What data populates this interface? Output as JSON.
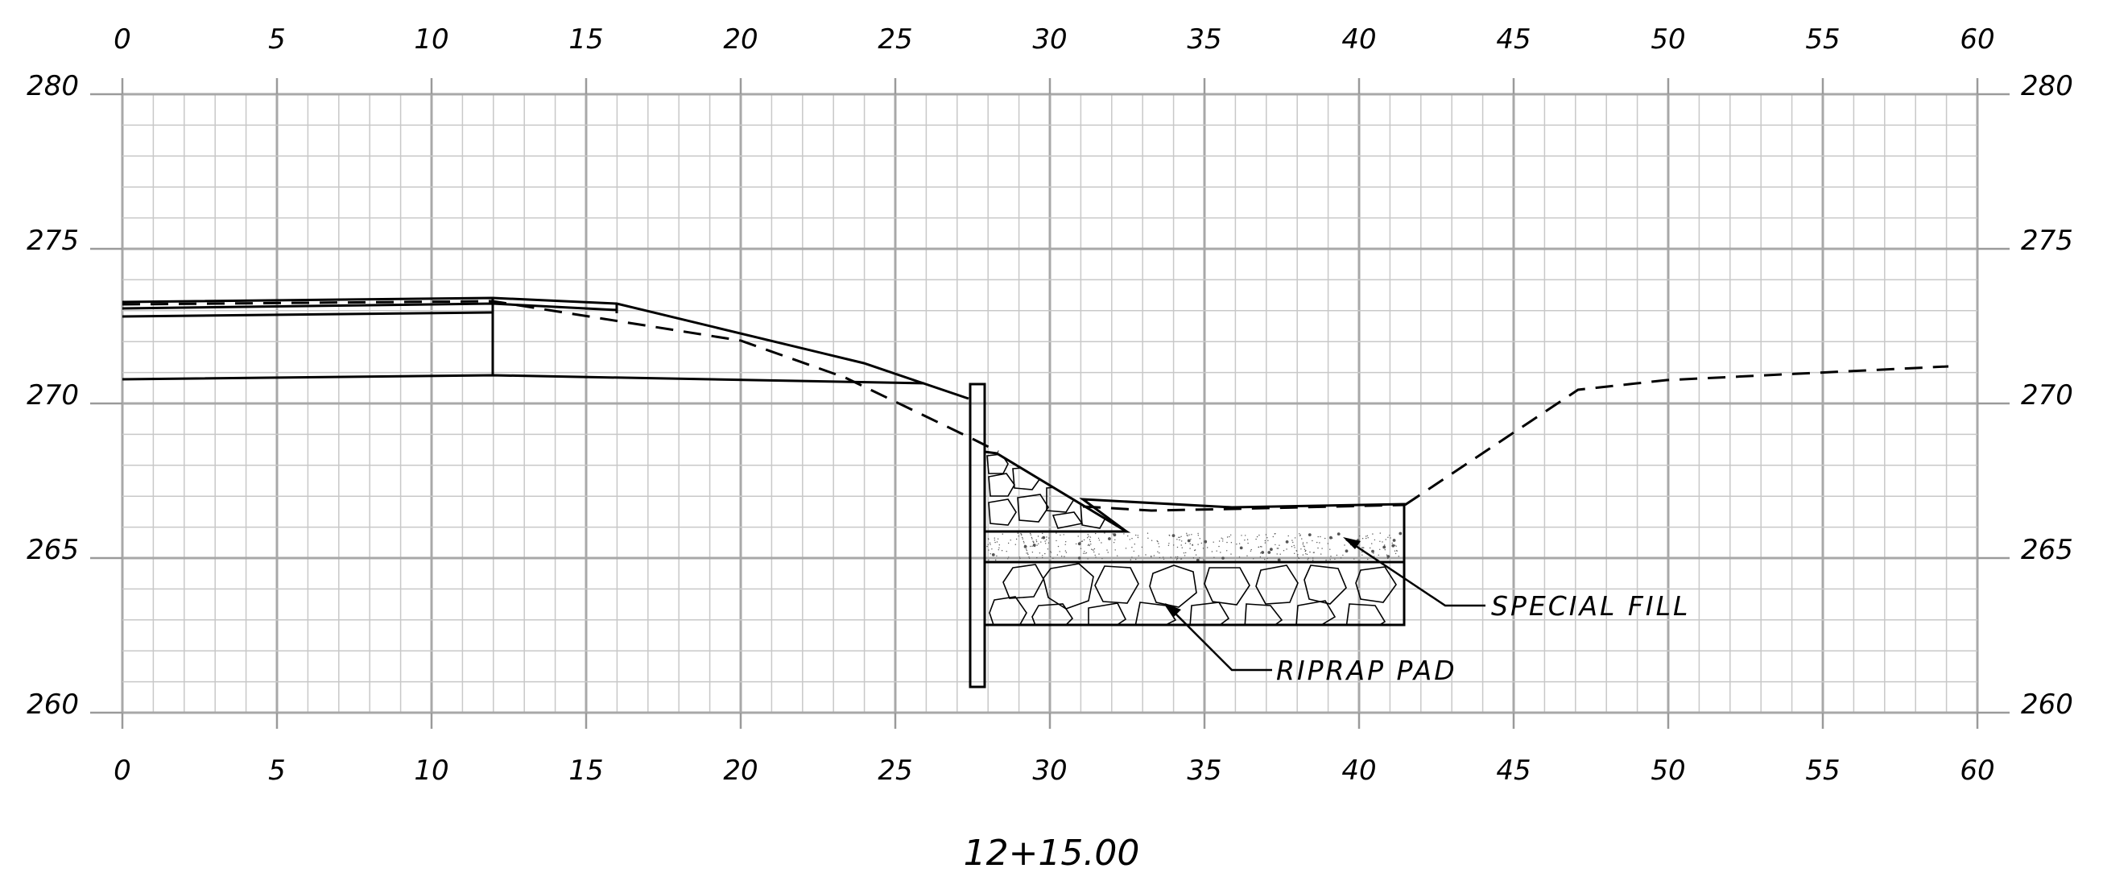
{
  "station_label": "12+15.00",
  "x_ticks": [
    "0",
    "5",
    "10",
    "15",
    "20",
    "25",
    "30",
    "35",
    "40",
    "45",
    "50",
    "55",
    "60"
  ],
  "y_ticks": [
    "280",
    "275",
    "270",
    "265",
    "260"
  ],
  "callouts": {
    "special_fill": "SPECIAL FILL",
    "riprap_pad": "RIPRAP PAD"
  },
  "chart_data": {
    "type": "cross-section",
    "x_range": [
      0,
      60
    ],
    "y_range": [
      260,
      280
    ],
    "grid": true,
    "existing_ground_dashed": [
      [
        0,
        273.3
      ],
      [
        12,
        273.4
      ],
      [
        20,
        272.1
      ],
      [
        23.5,
        271.2
      ],
      [
        28,
        268.5
      ],
      [
        32.5,
        266.8
      ],
      [
        40.5,
        266.6
      ],
      [
        41.5,
        266.8
      ],
      [
        47,
        270.3
      ],
      [
        60,
        271.1
      ]
    ],
    "proposed_surface": [
      [
        0,
        273.3
      ],
      [
        12,
        273.4
      ],
      [
        16,
        273.2
      ],
      [
        24,
        271.2
      ],
      [
        27.3,
        270.1
      ]
    ],
    "pavement_layers": [
      [
        [
          0,
          273.0
        ],
        [
          12,
          273.2
        ],
        [
          16,
          273.0
        ]
      ],
      [
        [
          0,
          272.8
        ],
        [
          12,
          272.9
        ]
      ],
      [
        [
          0,
          270.8
        ],
        [
          12,
          270.9
        ],
        [
          26,
          270.6
        ]
      ]
    ],
    "wall": {
      "x_left": 27.6,
      "x_right": 28.1,
      "top": 270.6,
      "bottom": 260.8
    },
    "special_fill": {
      "x_left": 28.1,
      "x_right": 41.5,
      "top": 266.8,
      "bottom": 264.9
    },
    "riprap_pad": {
      "x_left": 28.1,
      "x_right": 41.5,
      "top": 264.9,
      "bottom": 262.9
    },
    "riprap_slope": [
      [
        28.1,
        268.4
      ],
      [
        28.7,
        268.2
      ],
      [
        32.5,
        265.9
      ],
      [
        28.1,
        265.9
      ]
    ]
  }
}
